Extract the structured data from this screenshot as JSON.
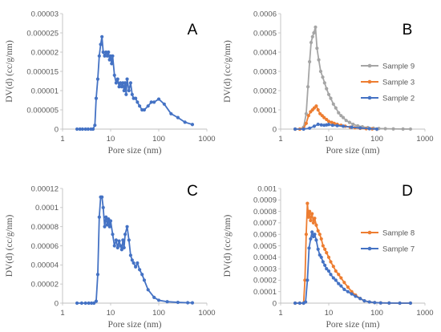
{
  "chart_data": [
    {
      "id": "A",
      "type": "line",
      "panel_label": "A",
      "xlabel": "Pore size (nm)",
      "ylabel": "DV(d) (cc/g/nm)",
      "xscale": "log",
      "xlim": [
        1,
        1000
      ],
      "ylim": [
        0,
        3e-05
      ],
      "x_ticks": [
        "1",
        "10",
        "100",
        "1000"
      ],
      "y_ticks": [
        "0",
        "0.000005",
        "0.00001",
        "0.000015",
        "0.00002",
        "0.000025",
        "0.00003"
      ],
      "grid": false,
      "legend": null,
      "series": [
        {
          "color": "#4472c4",
          "x": [
            2,
            2.3,
            2.6,
            3,
            3.4,
            3.9,
            4.3,
            4.7,
            5.0,
            5.4,
            5.8,
            6.2,
            6.6,
            7.0,
            7.5,
            8,
            8.5,
            9,
            9.5,
            10,
            10.5,
            11,
            12,
            13,
            14,
            15,
            16,
            17,
            18,
            19,
            20,
            21,
            22,
            24,
            26,
            28,
            30,
            33,
            36,
            40,
            45,
            50,
            60,
            70,
            80,
            100,
            130,
            180,
            250,
            350,
            500
          ],
          "y": [
            0,
            0,
            0,
            0,
            0,
            0,
            0,
            1e-06,
            8e-06,
            1.3e-05,
            1.9e-05,
            2.2e-05,
            2.4e-05,
            2e-05,
            1.9e-05,
            2e-05,
            1.9e-05,
            2e-05,
            1.8e-05,
            1.9e-05,
            1.7e-05,
            1.9e-05,
            1.4e-05,
            1.2e-05,
            1.3e-05,
            1.1e-05,
            1.2e-05,
            1.1e-05,
            1.2e-05,
            1e-05,
            1.2e-05,
            9e-06,
            1.3e-05,
            1e-05,
            1.2e-05,
            9e-06,
            8e-06,
            8e-06,
            7e-06,
            6e-06,
            5e-06,
            5e-06,
            6e-06,
            7e-06,
            7e-06,
            7.8e-06,
            6.5e-06,
            4e-06,
            3e-06,
            1.8e-06,
            1.2e-06
          ]
        }
      ]
    },
    {
      "id": "B",
      "type": "line",
      "panel_label": "B",
      "xlabel": "Pore size (nm)",
      "ylabel": "DV(d) (cc/g/nm)",
      "xscale": "log",
      "xlim": [
        1,
        1000
      ],
      "ylim": [
        0,
        0.0006
      ],
      "x_ticks": [
        "1",
        "10",
        "100",
        "1000"
      ],
      "y_ticks": [
        "0",
        "0.0001",
        "0.0002",
        "0.0003",
        "0.0004",
        "0.0005",
        "0.0006"
      ],
      "grid": false,
      "legend": "right",
      "series": [
        {
          "name": "Sample 9",
          "color": "#a5a5a5",
          "x": [
            2,
            2.5,
            3,
            3.4,
            3.7,
            4.0,
            4.3,
            4.6,
            4.9,
            5.3,
            5.7,
            6.2,
            6.8,
            7.5,
            8.2,
            9,
            10,
            11,
            12.5,
            14,
            16,
            18,
            20,
            23,
            27,
            32,
            40,
            50,
            65,
            85,
            110,
            150,
            220,
            350,
            500
          ],
          "y": [
            0,
            0,
            1e-05,
            8e-05,
            0.00022,
            0.00035,
            0.00045,
            0.00048,
            0.0005,
            0.00053,
            0.00042,
            0.00036,
            0.0003,
            0.00027,
            0.00024,
            0.00021,
            0.00018,
            0.00016,
            0.00013,
            0.00011,
            8.5e-05,
            7e-05,
            6e-05,
            4.5e-05,
            3.5e-05,
            2.5e-05,
            1.7e-05,
            1.2e-05,
            8e-06,
            5e-06,
            3e-06,
            2e-06,
            1e-06,
            5e-07,
            3e-07
          ]
        },
        {
          "name": "Sample 3",
          "color": "#ed7d31",
          "x": [
            2,
            2.5,
            3,
            3.4,
            3.8,
            4.2,
            4.6,
            5.0,
            5.5,
            6.0,
            6.6,
            7.3,
            8,
            9,
            10,
            11.5,
            13,
            15,
            18,
            22,
            28,
            35,
            45,
            60,
            80,
            100
          ],
          "y": [
            0,
            0,
            3e-06,
            3e-05,
            7e-05,
            9e-05,
            0.0001,
            0.00011,
            0.00012,
            0.0001,
            8e-05,
            7e-05,
            6e-05,
            5e-05,
            4e-05,
            3.5e-05,
            3e-05,
            2.5e-05,
            2e-05,
            1.5e-05,
            1e-05,
            7e-06,
            4e-06,
            2e-06,
            1e-06,
            0
          ]
        },
        {
          "name": "Sample 2",
          "color": "#4472c4",
          "x": [
            2,
            3,
            4,
            5,
            6,
            7,
            8,
            9,
            10,
            12,
            15,
            20,
            30,
            45,
            70,
            100
          ],
          "y": [
            0,
            0,
            5e-06,
            1.5e-05,
            2.5e-05,
            2.2e-05,
            2e-05,
            2.2e-05,
            2.4e-05,
            2e-05,
            1.8e-05,
            1.5e-05,
            1e-05,
            6e-06,
            2e-06,
            0
          ]
        }
      ]
    },
    {
      "id": "C",
      "type": "line",
      "panel_label": "C",
      "xlabel": "Pore size (nm)",
      "ylabel": "DV(d) (cc/g/nm)",
      "xscale": "log",
      "xlim": [
        1,
        1000
      ],
      "ylim": [
        0,
        0.00012
      ],
      "x_ticks": [
        "1",
        "10",
        "100",
        "1000"
      ],
      "y_ticks": [
        "0",
        "0.00002",
        "0.00004",
        "0.00006",
        "0.00008",
        "0.0001",
        "0.00012"
      ],
      "grid": false,
      "legend": null,
      "series": [
        {
          "color": "#4472c4",
          "x": [
            2,
            2.5,
            3,
            3.5,
            4,
            4.5,
            5.0,
            5.4,
            5.8,
            6.2,
            6.6,
            7.0,
            7.5,
            8,
            8.5,
            9,
            9.5,
            10,
            11,
            12,
            13,
            14,
            15,
            16,
            17,
            18,
            19,
            20,
            22,
            24,
            26,
            28,
            30,
            33,
            36,
            40,
            45,
            50,
            60,
            80,
            100,
            150,
            250,
            400,
            500
          ],
          "y": [
            0,
            0,
            0,
            0,
            0,
            0,
            2e-06,
            3e-05,
            9e-05,
            0.000111,
            0.000111,
            0.0001,
            8e-05,
            9e-05,
            8.2e-05,
            8.8e-05,
            8e-05,
            8.6e-05,
            7.2e-05,
            6e-05,
            6.6e-05,
            5.8e-05,
            6.5e-05,
            6e-05,
            5.6e-05,
            6.6e-05,
            5.8e-05,
            7.2e-05,
            8e-05,
            6.6e-05,
            5e-05,
            4.5e-05,
            4.2e-05,
            3.8e-05,
            4.2e-05,
            3.5e-05,
            3e-05,
            2.4e-05,
            1.4e-05,
            6e-06,
            3e-06,
            1.5e-06,
            8e-07,
            4e-07,
            3e-07
          ]
        }
      ]
    },
    {
      "id": "D",
      "type": "line",
      "panel_label": "D",
      "xlabel": "Pore size (nm)",
      "ylabel": "DV(d) (cc/g/nm)",
      "xscale": "log",
      "xlim": [
        1,
        1000
      ],
      "ylim": [
        0,
        0.001
      ],
      "x_ticks": [
        "1",
        "10",
        "100",
        "1000"
      ],
      "y_ticks": [
        "0",
        "0.0001",
        "0.0002",
        "0.0003",
        "0.0004",
        "0.0005",
        "0.0006",
        "0.0007",
        "0.0008",
        "0.0009",
        "0.001"
      ],
      "grid": false,
      "legend": "right",
      "series": [
        {
          "name": "Sample 8",
          "color": "#ed7d31",
          "x": [
            2,
            2.5,
            3,
            3.2,
            3.4,
            3.6,
            3.8,
            4.0,
            4.2,
            4.5,
            4.8,
            5.1,
            5.5,
            6.0,
            6.5,
            7,
            7.6,
            8.3,
            9,
            10,
            11,
            12.5,
            14,
            16,
            18,
            21,
            25,
            30,
            36,
            45,
            55,
            70,
            90,
            120,
            180,
            300,
            500
          ],
          "y": [
            0,
            0,
            0,
            0.0002,
            0.0006,
            0.00087,
            0.00075,
            0.0008,
            0.00072,
            0.00078,
            0.0007,
            0.00074,
            0.00068,
            0.00063,
            0.0006,
            0.00056,
            0.0005,
            0.00047,
            0.00044,
            0.0004,
            0.00036,
            0.00032,
            0.00028,
            0.00025,
            0.00022,
            0.00018,
            0.00014,
            0.0001,
            7e-05,
            4e-05,
            2e-05,
            1e-05,
            5e-06,
            2e-06,
            1e-06,
            0,
            0
          ]
        },
        {
          "name": "Sample 7",
          "color": "#4472c4",
          "x": [
            2,
            2.5,
            3,
            3.3,
            3.6,
            3.9,
            4.2,
            4.5,
            4.8,
            5.1,
            5.5,
            6.0,
            6.5,
            7,
            7.6,
            8.3,
            9,
            10,
            11,
            12.5,
            14,
            16,
            18,
            21,
            25,
            30,
            36,
            45,
            55,
            70,
            90,
            120,
            180,
            300,
            500
          ],
          "y": [
            0,
            0,
            0,
            1e-05,
            0.0002,
            0.00048,
            0.00056,
            0.00062,
            0.00058,
            0.0006,
            0.00055,
            0.00047,
            0.00042,
            0.0004,
            0.00036,
            0.00033,
            0.0003,
            0.00028,
            0.00025,
            0.00022,
            0.0002,
            0.00017,
            0.00015,
            0.00012,
            0.0001,
            8e-05,
            6e-05,
            4e-05,
            2e-05,
            1e-05,
            5e-06,
            2e-06,
            1e-06,
            0,
            0
          ]
        }
      ]
    }
  ]
}
